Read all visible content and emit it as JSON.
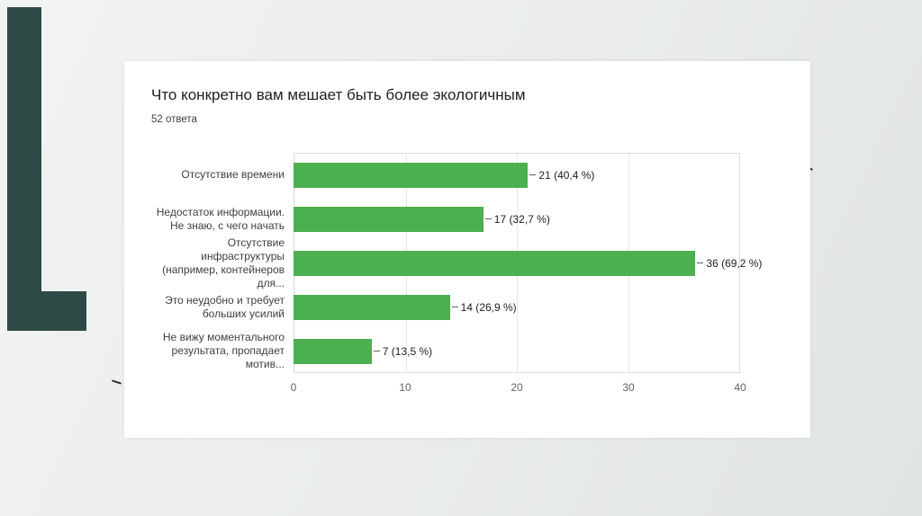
{
  "theme": {
    "background": "#e9eceb",
    "accent": "#2d4a46",
    "card": "#ffffff",
    "gridline_color": "#e7e7e7",
    "plot_border_color": "#dadce0"
  },
  "chart_data": {
    "type": "bar",
    "orientation": "horizontal",
    "title": "Что конкретно вам мешает быть более экологичным",
    "subtitle": "52 ответа",
    "categories": [
      "Отсутствие времени",
      "Недостаток информации. Не знаю, с чего начать",
      "Отсутствие инфраструктуры (например, контейнеров для...",
      "Это неудобно и требует больших усилий",
      "Не вижу моментального результата, пропадает мотив..."
    ],
    "values": [
      21,
      17,
      36,
      14,
      7
    ],
    "value_labels": [
      "21 (40,4 %)",
      "17 (32,7 %)",
      "36 (69,2 %)",
      "14 (26,9 %)",
      "7 (13,5 %)"
    ],
    "xlim": [
      0,
      40
    ],
    "xticks": [
      0,
      10,
      20,
      30,
      40
    ],
    "bar_color": "#4caf50",
    "grid": true,
    "legend_position": "none"
  }
}
